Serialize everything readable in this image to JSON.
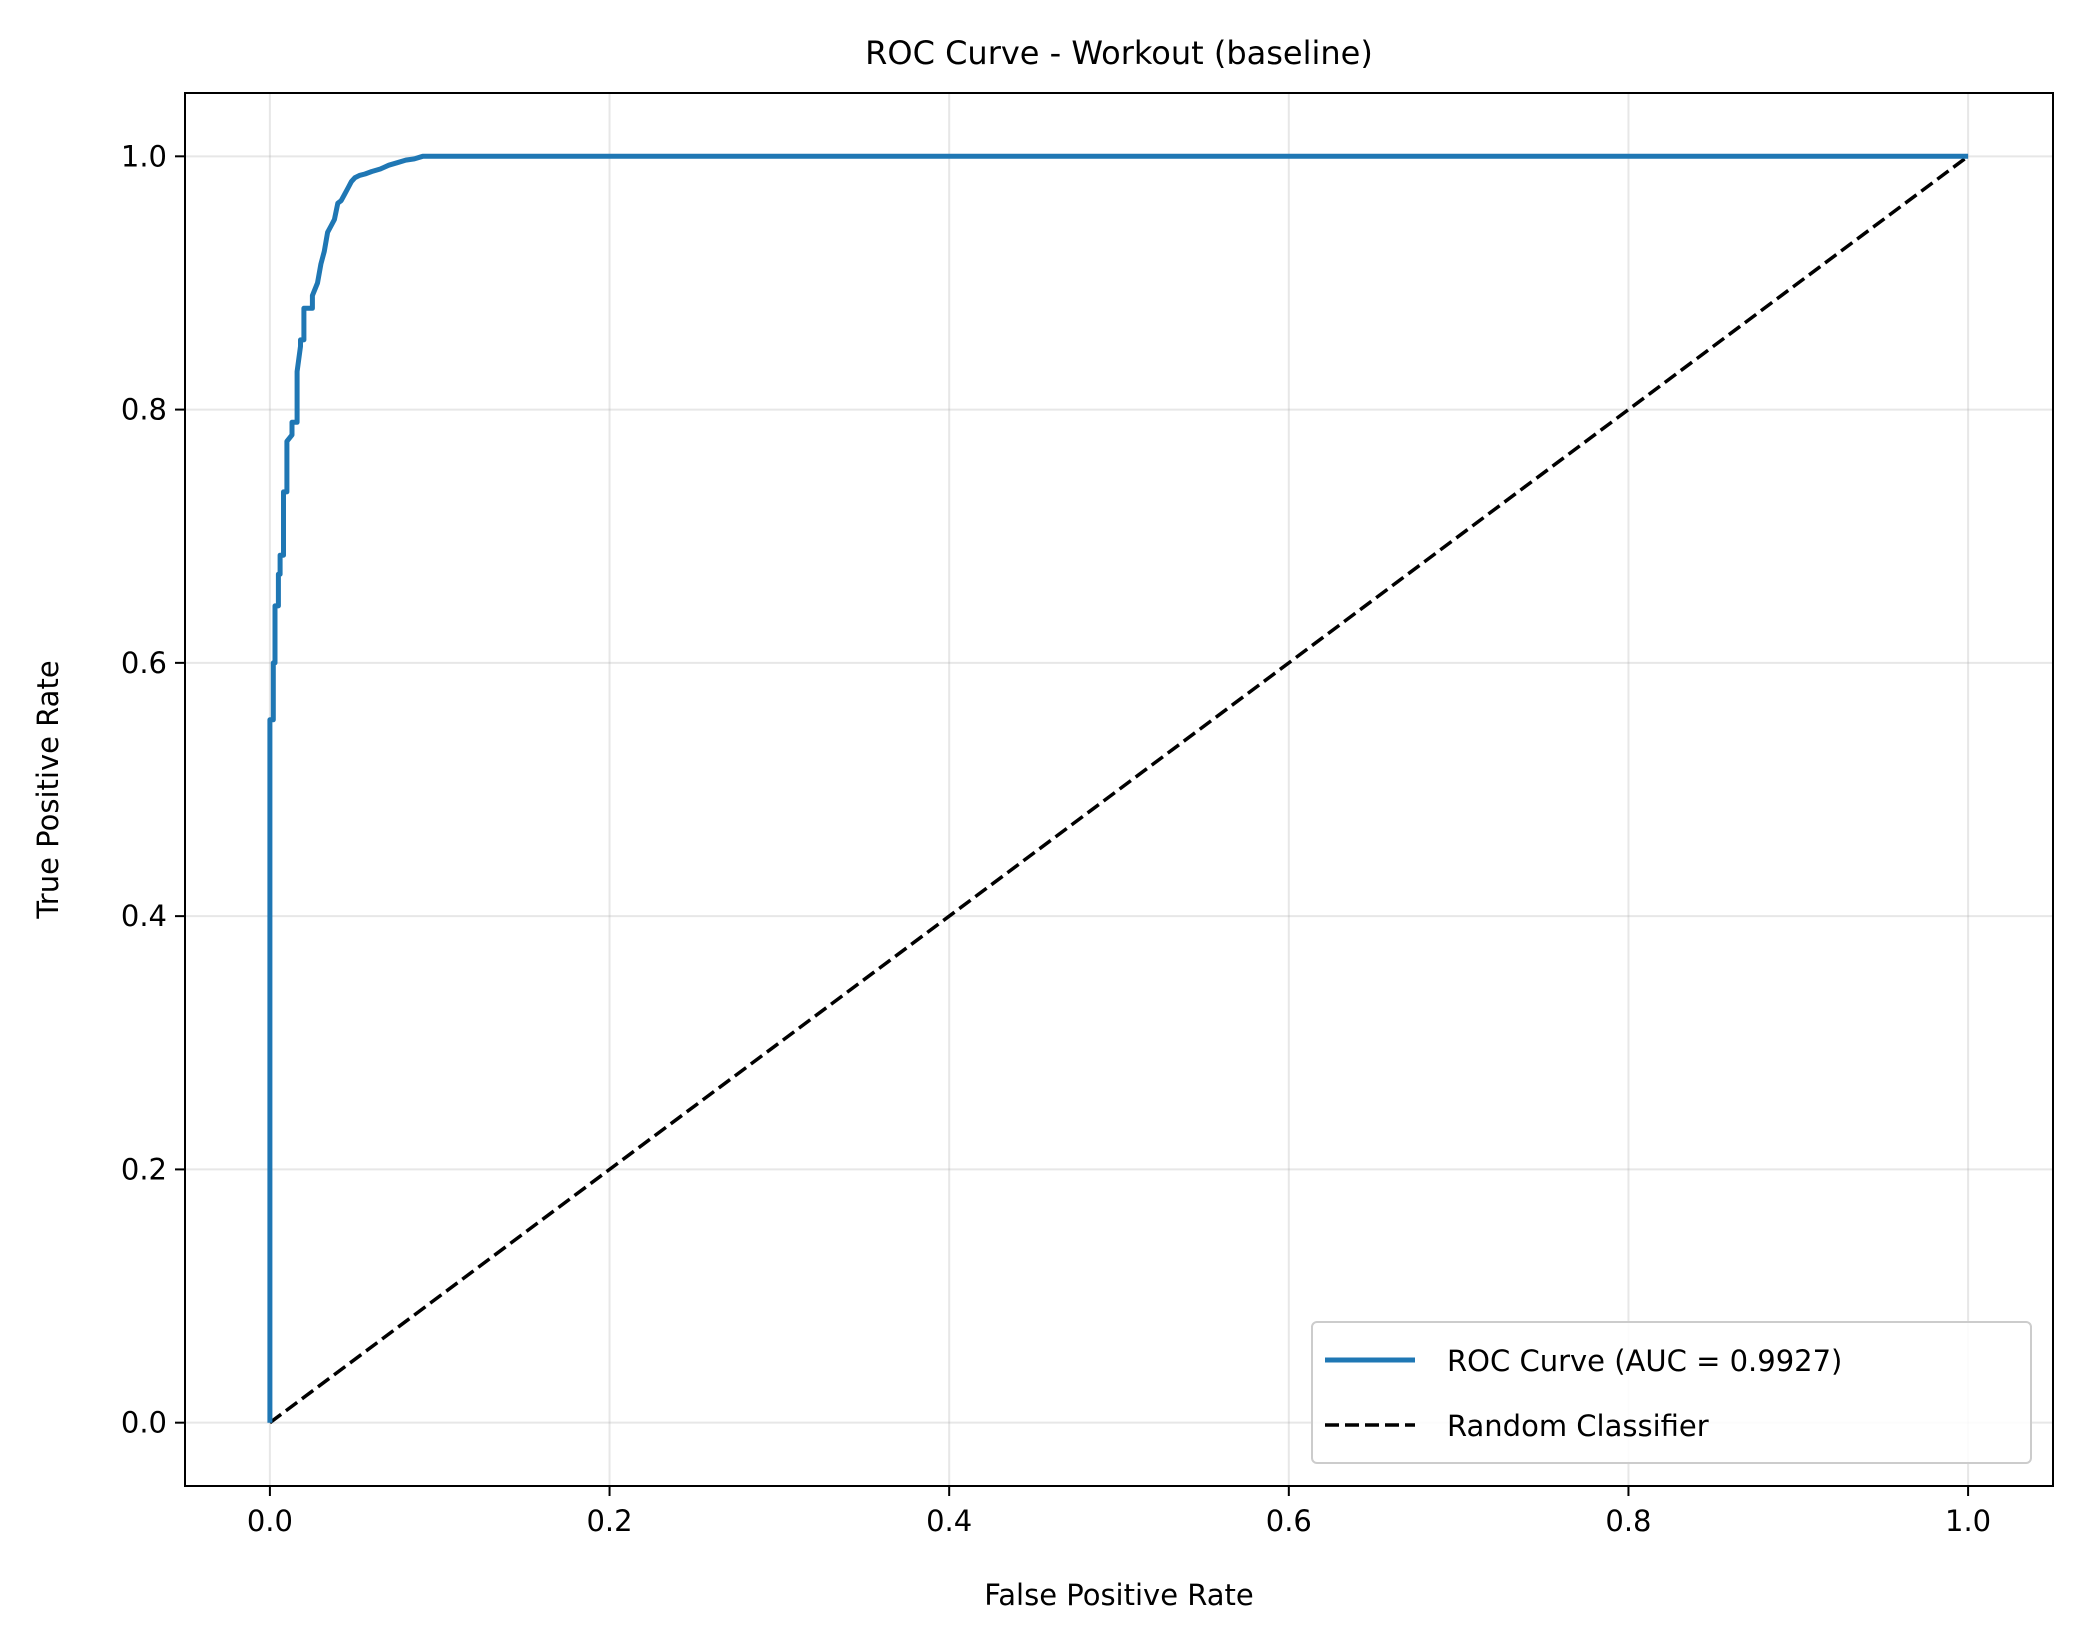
{
  "chart_data": {
    "type": "line",
    "title": "ROC Curve - Workout (baseline)",
    "xlabel": "False Positive Rate",
    "ylabel": "True Positive Rate",
    "xlim": [
      -0.05,
      1.05
    ],
    "ylim": [
      -0.05,
      1.05
    ],
    "xticks": [
      "0.0",
      "0.2",
      "0.4",
      "0.6",
      "0.8",
      "1.0"
    ],
    "yticks": [
      "0.0",
      "0.2",
      "0.4",
      "0.6",
      "0.8",
      "1.0"
    ],
    "grid": true,
    "legend_position": "lower-right",
    "series": [
      {
        "name": "ROC Curve (AUC = 0.9927)",
        "color": "#1f77b4",
        "style": "solid",
        "x": [
          0,
          0,
          0.002,
          0.002,
          0.003,
          0.003,
          0.005,
          0.005,
          0.006,
          0.006,
          0.008,
          0.008,
          0.01,
          0.01,
          0.013,
          0.013,
          0.016,
          0.016,
          0.018,
          0.018,
          0.02,
          0.02,
          0.025,
          0.025,
          0.028,
          0.03,
          0.032,
          0.034,
          0.036,
          0.038,
          0.04,
          0.042,
          0.044,
          0.046,
          0.048,
          0.05,
          0.053,
          0.056,
          0.06,
          0.065,
          0.07,
          0.075,
          0.08,
          0.085,
          0.09,
          0.095,
          1.0
        ],
        "y": [
          0,
          0.555,
          0.555,
          0.6,
          0.6,
          0.645,
          0.645,
          0.67,
          0.67,
          0.685,
          0.685,
          0.735,
          0.735,
          0.775,
          0.78,
          0.79,
          0.79,
          0.83,
          0.85,
          0.855,
          0.855,
          0.88,
          0.88,
          0.89,
          0.9,
          0.915,
          0.925,
          0.94,
          0.945,
          0.95,
          0.963,
          0.965,
          0.97,
          0.975,
          0.98,
          0.983,
          0.985,
          0.986,
          0.988,
          0.99,
          0.993,
          0.995,
          0.997,
          0.998,
          1.0,
          1.0,
          1.0
        ]
      },
      {
        "name": "Random Classifier",
        "color": "#000000",
        "style": "dashed",
        "x": [
          0,
          1
        ],
        "y": [
          0,
          1
        ]
      }
    ]
  }
}
